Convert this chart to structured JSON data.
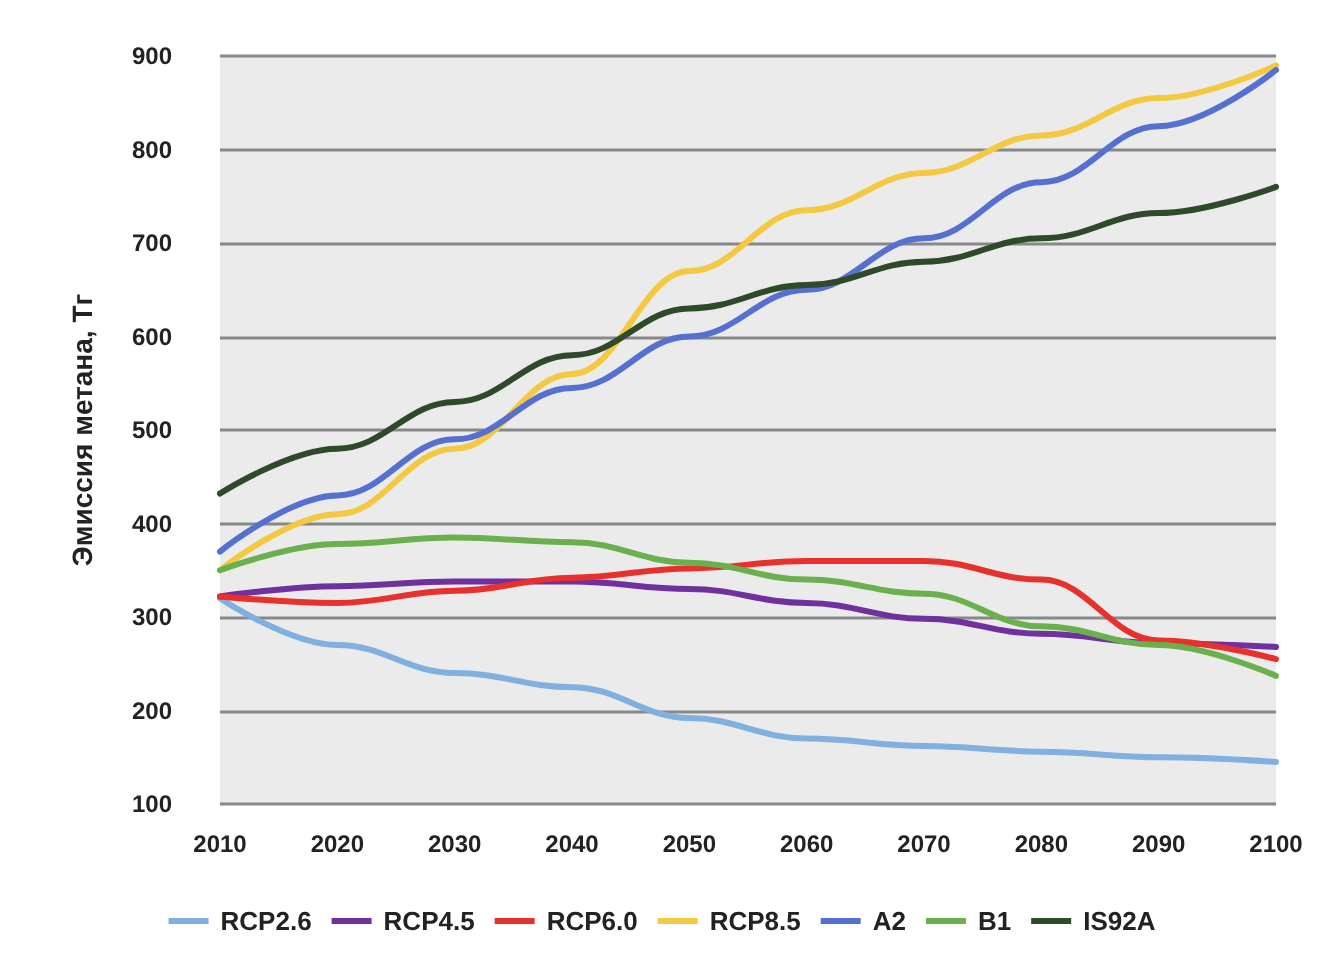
{
  "chart_data": {
    "type": "line",
    "ylabel": "Эмиссия метана, Тг",
    "x": [
      2010,
      2020,
      2030,
      2040,
      2050,
      2060,
      2070,
      2080,
      2090,
      2100
    ],
    "xlim": [
      2010,
      2100
    ],
    "xticks": [
      2010,
      2020,
      2030,
      2040,
      2050,
      2060,
      2070,
      2080,
      2090,
      2100
    ],
    "ylim": [
      100,
      900
    ],
    "yticks": [
      100,
      200,
      300,
      400,
      500,
      600,
      700,
      800,
      900
    ],
    "grid": "y",
    "legend": "bottom",
    "marker": "none",
    "line_style": "solid",
    "series": [
      {
        "name": "RCP2.6",
        "color": "#7fb0e0",
        "values": [
          320,
          270,
          240,
          225,
          192,
          170,
          162,
          156,
          150,
          145
        ]
      },
      {
        "name": "RCP4.5",
        "color": "#7030a0",
        "values": [
          322,
          333,
          338,
          338,
          330,
          315,
          298,
          282,
          272,
          268
        ]
      },
      {
        "name": "RCP6.0",
        "color": "#e8302c",
        "values": [
          322,
          315,
          328,
          342,
          352,
          360,
          360,
          340,
          275,
          255
        ]
      },
      {
        "name": "RCP8.5",
        "color": "#f5c842",
        "values": [
          350,
          410,
          480,
          560,
          670,
          735,
          775,
          815,
          855,
          890
        ]
      },
      {
        "name": "A2",
        "color": "#5570d0",
        "values": [
          370,
          430,
          490,
          545,
          600,
          650,
          705,
          765,
          825,
          885
        ]
      },
      {
        "name": "B1",
        "color": "#6ab04c",
        "values": [
          350,
          378,
          385,
          380,
          358,
          340,
          325,
          290,
          270,
          237
        ]
      },
      {
        "name": "IS92A",
        "color": "#2f4a2a",
        "values": [
          432,
          480,
          530,
          580,
          630,
          655,
          680,
          705,
          732,
          760
        ]
      }
    ]
  }
}
